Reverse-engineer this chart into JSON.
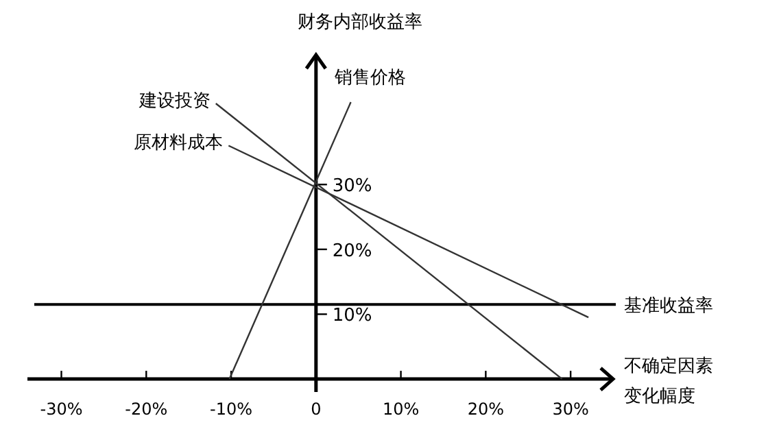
{
  "chart_data": {
    "type": "line",
    "ylabel": "财务内部收益率",
    "xlabel": "不确定因素变化幅度",
    "xlim": [
      -34,
      35
    ],
    "ylim": [
      -2,
      50
    ],
    "xticks": [
      {
        "value": -30,
        "label": "-30%"
      },
      {
        "value": -20,
        "label": "-20%"
      },
      {
        "value": -10,
        "label": "-10%"
      },
      {
        "value": 0,
        "label": "0"
      },
      {
        "value": 10,
        "label": "10%"
      },
      {
        "value": 20,
        "label": "20%"
      },
      {
        "value": 30,
        "label": "30%"
      }
    ],
    "yticks": [
      {
        "value": 10,
        "label": "10%"
      },
      {
        "value": 20,
        "label": "20%"
      },
      {
        "value": 30,
        "label": "30%"
      }
    ],
    "series": [
      {
        "name": "建设投资",
        "color": "#333333",
        "x": [
          -11.8,
          29
        ],
        "values": [
          42.5,
          0
        ]
      },
      {
        "name": "销售价格",
        "color": "#333333",
        "x": [
          -10.2,
          4.1
        ],
        "values": [
          0,
          42.7
        ]
      },
      {
        "name": "原材料成本",
        "color": "#333333",
        "x": [
          -10.3,
          32.1
        ],
        "values": [
          36,
          9.5
        ]
      }
    ],
    "ref_lines": [
      {
        "axis": "y",
        "value": 11.5,
        "label": "基准收益率",
        "color": "#000000"
      }
    ],
    "grid": false,
    "legend": false,
    "marker": "none",
    "line_style": "solid"
  }
}
